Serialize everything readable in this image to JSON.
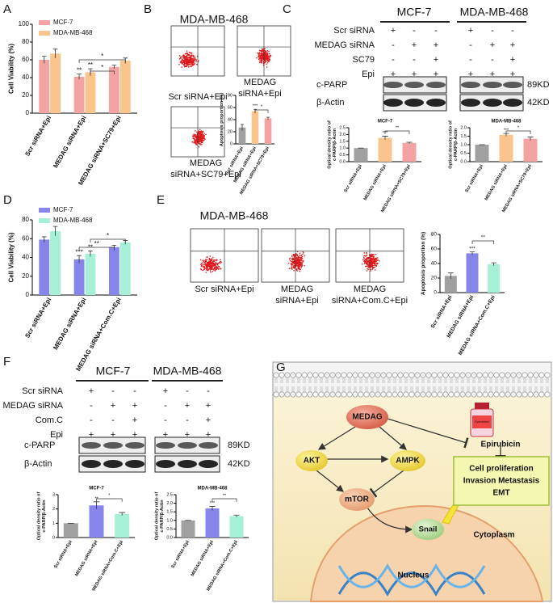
{
  "panels": [
    "A",
    "B",
    "C",
    "D",
    "E",
    "F",
    "G"
  ],
  "flow_b": {
    "title": "MDA-MB-468",
    "captions": [
      [
        "Scr siRNA+Epi"
      ],
      [
        "MEDAG",
        "siRNA+Epi"
      ],
      [
        "MEDAG",
        "siRNA+SC79+Epi"
      ]
    ]
  },
  "flow_e": {
    "title": "MDA-MB-468",
    "captions": [
      [
        "Scr siRNA+Epi"
      ],
      [
        "MEDAG",
        "siRNA+Epi"
      ],
      [
        "MEDAG",
        "siRNA+Com.C+Epi"
      ]
    ]
  },
  "blot_c": {
    "cell_lines": [
      "MCF-7",
      "MDA-MB-468"
    ],
    "treatments": [
      {
        "label": "Scr siRNA",
        "signs": [
          "+",
          "-",
          "-",
          "+",
          "-",
          "-"
        ]
      },
      {
        "label": "MEDAG siRNA",
        "signs": [
          "-",
          "+",
          "+",
          "-",
          "+",
          "+"
        ]
      },
      {
        "label": "SC79",
        "signs": [
          "-",
          "-",
          "+",
          "-",
          "-",
          "+"
        ]
      },
      {
        "label": "Epi",
        "signs": [
          "+",
          "+",
          "+",
          "+",
          "+",
          "+"
        ]
      }
    ],
    "bands": [
      {
        "label": "c-PARP",
        "size": "89KD"
      },
      {
        "label": "β-Actin",
        "size": "42KD"
      }
    ]
  },
  "blot_f": {
    "cell_lines": [
      "MCF-7",
      "MDA-MB-468"
    ],
    "treatments": [
      {
        "label": "Scr siRNA",
        "signs": [
          "+",
          "-",
          "-",
          "+",
          "-",
          "-"
        ]
      },
      {
        "label": "MEDAG siRNA",
        "signs": [
          "-",
          "+",
          "+",
          "-",
          "+",
          "+"
        ]
      },
      {
        "label": "Com.C",
        "signs": [
          "-",
          "-",
          "+",
          "-",
          "-",
          "+"
        ]
      },
      {
        "label": "Epi",
        "signs": [
          "+",
          "+",
          "+",
          "+",
          "+",
          "+"
        ]
      }
    ],
    "bands": [
      {
        "label": "c-PARP",
        "size": "89KD"
      },
      {
        "label": "β-Actin",
        "size": "42KD"
      }
    ]
  },
  "diagram": {
    "medag": "MEDAG",
    "akt": "AKT",
    "ampk": "AMPK",
    "mtor": "mTOR",
    "snail": "Snail",
    "drug": "Epirubicin",
    "bottle": "Epirubicin",
    "outcomes": [
      "Cell proliferation",
      "Invasion  Metastasis",
      "EMT"
    ],
    "cytoplasm": "Cytoplasm",
    "nucleus": "Nucleus"
  },
  "chart_data": [
    {
      "type": "bar",
      "ylabel": "Cell Viability (%)",
      "categories": [
        "Scr siRNA+Epi",
        "MEDAG siRNA+Epi",
        "MEDAG siRNA+SC79+Epi"
      ],
      "series": [
        {
          "name": "MCF-7",
          "color": "#f4a3a3",
          "values": [
            60,
            41,
            52
          ],
          "errors": [
            4,
            3,
            2
          ]
        },
        {
          "name": "MDA-MB-468",
          "color": "#f9c58c",
          "values": [
            67,
            46,
            59
          ],
          "errors": [
            5,
            4,
            3
          ]
        }
      ],
      "ylim": [
        0,
        100
      ],
      "yticks": [
        0,
        20,
        40,
        60,
        80,
        100
      ],
      "annotations": [
        "**",
        "**",
        "*",
        "*"
      ]
    },
    {
      "type": "bar",
      "ylabel": "Apoptosis proportion (%)",
      "categories": [
        "Scr siRNA+Epi",
        "MEDAG siRNA+Epi",
        "MEDAG siRNA+SC79+Epi"
      ],
      "values": [
        27,
        54,
        42
      ],
      "errors": [
        5,
        3,
        2
      ],
      "colors": [
        "#a0a0a0",
        "#f9c58c",
        "#f4a3a3"
      ],
      "ylim": [
        0,
        80
      ],
      "yticks": [
        0,
        20,
        40,
        60,
        80
      ],
      "annotations": [
        "***",
        "*"
      ]
    },
    {
      "type": "bar",
      "title": "MCF-7",
      "ylabel": [
        "Optical density ratio of",
        "c-PARP/β-Actin"
      ],
      "categories": [
        "Scr siRNA+Epi",
        "MEDAG siRNA+Epi",
        "MEDAG siRNA+SC79+Epi"
      ],
      "values": [
        1.0,
        1.75,
        1.38
      ],
      "errors": [
        0,
        0.12,
        0.05
      ],
      "colors": [
        "#a0a0a0",
        "#f9c58c",
        "#f4a3a3"
      ],
      "ylim": [
        0,
        2.5
      ],
      "yticks": [
        {
          "value": 0,
          "label": "0.0"
        },
        {
          "value": 0.5,
          "label": "0.5"
        },
        {
          "value": 1,
          "label": "1.0"
        },
        {
          "value": 1.5,
          "label": "1.5"
        },
        {
          "value": 2,
          "label": "2.0"
        },
        {
          "value": 2.5,
          "label": "2.5"
        }
      ],
      "annotations": [
        "***",
        "**"
      ]
    },
    {
      "type": "bar",
      "title": "MDA-MB-468",
      "ylabel": [
        "Optical density ratio of",
        "c-PARP/β-Actin"
      ],
      "categories": [
        "Scr siRNA+Epi",
        "MEDAG siRNA+Epi",
        "MEDAG siRNA+SC79+Epi"
      ],
      "values": [
        1.0,
        1.58,
        1.35
      ],
      "errors": [
        0,
        0.08,
        0.1
      ],
      "colors": [
        "#a0a0a0",
        "#f9c58c",
        "#f4a3a3"
      ],
      "ylim": [
        0,
        2.0
      ],
      "yticks": [
        {
          "value": 0,
          "label": "0.0"
        },
        {
          "value": 0.5,
          "label": "0.5"
        },
        {
          "value": 1,
          "label": "1.0"
        },
        {
          "value": 1.5,
          "label": "1.5"
        },
        {
          "value": 2,
          "label": "2.0"
        }
      ],
      "annotations": [
        "***",
        "*"
      ]
    },
    {
      "type": "bar",
      "ylabel": "Cell Viability (%)",
      "categories": [
        "Scr siRNA+Epi",
        "MEDAG siRNA+Epi",
        "MEDAG siRNA+Com.C+Epi"
      ],
      "series": [
        {
          "name": "MCF-7",
          "color": "#8585ea",
          "values": [
            59,
            38,
            51
          ],
          "errors": [
            3,
            4,
            2
          ]
        },
        {
          "name": "MDA-MB-468",
          "color": "#a6f0d8",
          "values": [
            68,
            44,
            56
          ],
          "errors": [
            5,
            3,
            2
          ]
        }
      ],
      "ylim": [
        0,
        80
      ],
      "yticks": [
        0,
        20,
        40,
        60,
        80
      ],
      "annotations": [
        "***",
        "**",
        "**",
        "*"
      ]
    },
    {
      "type": "bar",
      "ylabel": "Apoptosis proportion (%)",
      "categories": [
        "Scr siRNA+Epi",
        "MEDAG siRNA+Epi",
        "MEDAG siRNA+Com.C+Epi"
      ],
      "values": [
        23,
        54,
        39
      ],
      "errors": [
        4,
        2,
        2
      ],
      "colors": [
        "#a0a0a0",
        "#8585ea",
        "#a6f0d8"
      ],
      "ylim": [
        0,
        80
      ],
      "yticks": [
        0,
        20,
        40,
        60,
        80
      ],
      "annotations": [
        "***",
        "**"
      ]
    },
    {
      "type": "bar",
      "title": "MCF-7",
      "ylabel": [
        "Optical density ratio of",
        "c-PARP/β-Actin"
      ],
      "categories": [
        "Scr siRNA+Epi",
        "MEDAG siRNA+Epi",
        "MEDAG siRNA+Com.C+Epi"
      ],
      "values": [
        1.0,
        2.25,
        1.65
      ],
      "errors": [
        0,
        0.25,
        0.1
      ],
      "colors": [
        "#a0a0a0",
        "#8585ea",
        "#a6f0d8"
      ],
      "ylim": [
        0,
        3
      ],
      "yticks": [
        0,
        1,
        2,
        3
      ],
      "annotations": [
        "**",
        "*"
      ]
    },
    {
      "type": "bar",
      "title": "MDA-MB-468",
      "ylabel": [
        "Optical density ratio of",
        "c-PARP/β-Actin"
      ],
      "categories": [
        "Scr siRNA+Epi",
        "MEDAG siRNA+Epi",
        "MEDAG siRNA+Com.C+Epi"
      ],
      "values": [
        1.0,
        1.7,
        1.25
      ],
      "errors": [
        0,
        0.12,
        0.06
      ],
      "colors": [
        "#a0a0a0",
        "#8585ea",
        "#a6f0d8"
      ],
      "ylim": [
        0,
        2.5
      ],
      "yticks": [
        {
          "value": 0,
          "label": "0.0"
        },
        {
          "value": 0.5,
          "label": "0.5"
        },
        {
          "value": 1,
          "label": "1.0"
        },
        {
          "value": 1.5,
          "label": "1.5"
        },
        {
          "value": 2,
          "label": "2.0"
        },
        {
          "value": 2.5,
          "label": "2.5"
        }
      ],
      "annotations": [
        "***",
        "**"
      ]
    }
  ]
}
